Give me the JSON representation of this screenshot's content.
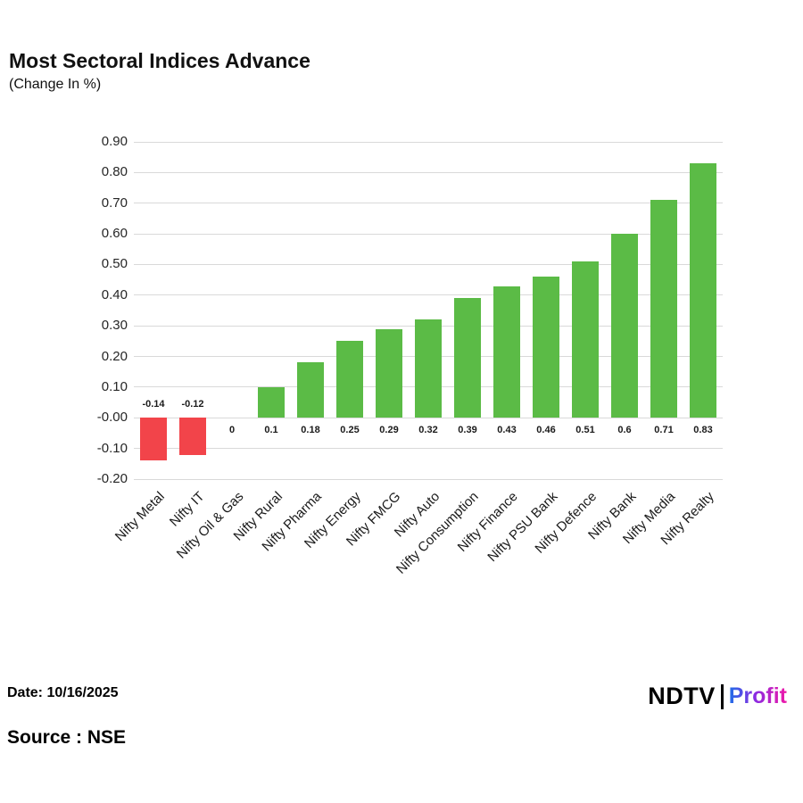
{
  "page": {
    "title": "Most Sectoral Indices Advance",
    "subtitle": "(Change In %)",
    "date_label": "Date: 10/16/2025",
    "source_label": "Source : NSE",
    "logo": {
      "ndtv": "NDTV",
      "profit": "Profit"
    }
  },
  "colors": {
    "positive": "#5bbb46",
    "negative": "#f2444a",
    "grid": "#d9d9d9"
  },
  "chart_data": {
    "type": "bar",
    "title": "Most Sectoral Indices Advance",
    "subtitle": "(Change In %)",
    "categories": [
      "Nifty Metal",
      "Nifty IT",
      "Nifty Oil & Gas",
      "Nifty Rural",
      "Nifty Pharma",
      "Nifty Energy",
      "Nifty FMCG",
      "Nifty Auto",
      "Nifty Consumption",
      "Nifty Finance",
      "Nifty PSU Bank",
      "Nifty Defence",
      "Nifty Bank",
      "Nifty Media",
      "Nifty Realty"
    ],
    "values": [
      -0.14,
      -0.12,
      0,
      0.1,
      0.18,
      0.25,
      0.29,
      0.32,
      0.39,
      0.43,
      0.46,
      0.51,
      0.6,
      0.71,
      0.83
    ],
    "value_labels": [
      "-0.14",
      "-0.12",
      "0",
      "0.1",
      "0.18",
      "0.25",
      "0.29",
      "0.32",
      "0.39",
      "0.43",
      "0.46",
      "0.51",
      "0.6",
      "0.71",
      "0.83"
    ],
    "ylim": [
      -0.2,
      0.9
    ],
    "yticks": [
      0.9,
      0.8,
      0.7,
      0.6,
      0.5,
      0.4,
      0.3,
      0.2,
      0.1,
      0.0,
      -0.1,
      -0.2
    ],
    "ytick_labels": [
      "0.90",
      "0.80",
      "0.70",
      "0.60",
      "0.50",
      "0.40",
      "0.30",
      "0.20",
      "0.10",
      "-0.00",
      "-0.10",
      "-0.20"
    ],
    "xlabel": "",
    "ylabel": "",
    "grid": true,
    "legend_position": "none"
  }
}
